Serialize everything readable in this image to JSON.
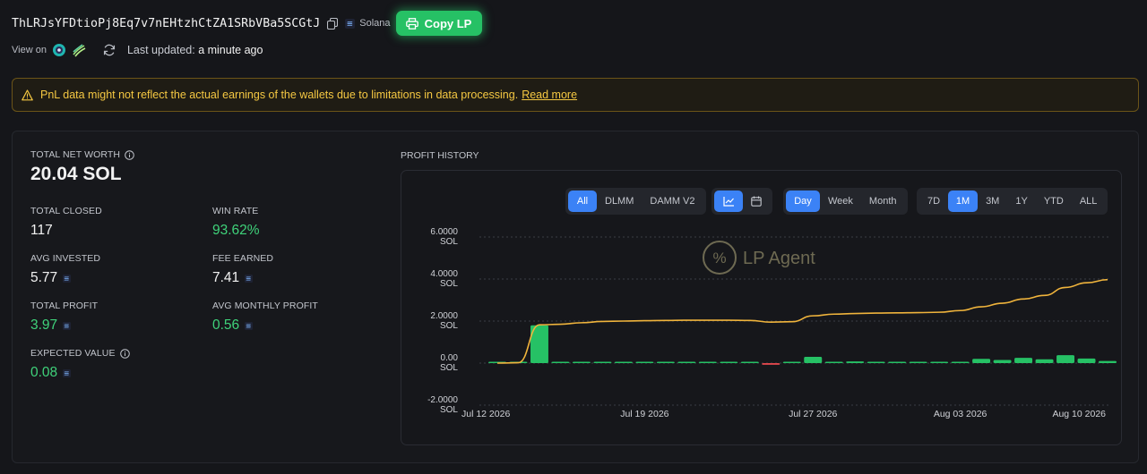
{
  "header": {
    "wallet_address": "ThLRJsYFDtioPj8Eq7v7nEHtzhCtZA1SRbVBa5SCGtJ",
    "network": "Solana",
    "copy_button": "Copy LP"
  },
  "subhead": {
    "view_on": "View on",
    "updated_label": "Last updated:",
    "updated_value": "a minute ago"
  },
  "warning": {
    "text": "PnL data might not reflect the actual earnings of the wallets due to limitations in data processing.",
    "link": "Read more"
  },
  "stats": {
    "net_worth_label": "TOTAL NET WORTH",
    "net_worth_value": "20.04 SOL",
    "total_closed_label": "TOTAL CLOSED",
    "total_closed_value": "117",
    "win_rate_label": "WIN RATE",
    "win_rate_value": "93.62%",
    "avg_invested_label": "AVG INVESTED",
    "avg_invested_value": "5.77",
    "fee_earned_label": "FEE EARNED",
    "fee_earned_value": "7.41",
    "total_profit_label": "TOTAL PROFIT",
    "total_profit_value": "3.97",
    "avg_monthly_label": "AVG MONTHLY PROFIT",
    "avg_monthly_value": "0.56",
    "expected_value_label": "EXPECTED VALUE",
    "expected_value_value": "0.08"
  },
  "profit_history": {
    "title": "PROFIT HISTORY",
    "pool_filters": [
      "All",
      "DLMM",
      "DAMM V2"
    ],
    "pool_active": "All",
    "view_modes": [
      "chart-icon",
      "calendar-icon"
    ],
    "view_active": "chart-icon",
    "granularity": [
      "Day",
      "Week",
      "Month"
    ],
    "granularity_active": "Day",
    "ranges": [
      "7D",
      "1M",
      "3M",
      "1Y",
      "YTD",
      "ALL"
    ],
    "range_active": "1M",
    "watermark": "LP Agent"
  },
  "colors": {
    "accent_green": "#26c165",
    "positive": "#3fd27a",
    "negative": "#e0474c",
    "line": "#f0b43c",
    "active_blue": "#3b82f6",
    "warning": "#f5c842"
  },
  "chart_data": {
    "type": "bar",
    "y_ticks": [
      {
        "value": 6,
        "line1": "6.0000",
        "line2": "SOL"
      },
      {
        "value": 4,
        "line1": "4.0000",
        "line2": "SOL"
      },
      {
        "value": 2,
        "line1": "2.0000",
        "line2": "SOL"
      },
      {
        "value": 0,
        "line1": "0.00",
        "line2": "SOL"
      },
      {
        "value": -2,
        "line1": "-2.0000",
        "line2": "SOL"
      }
    ],
    "ylim": [
      -2,
      6
    ],
    "x_tick_labels": [
      {
        "day": 0,
        "label": "Jul 12 2026"
      },
      {
        "day": 7,
        "label": "Jul 19 2026"
      },
      {
        "day": 15,
        "label": "Jul 27 2026"
      },
      {
        "day": 22,
        "label": "Aug 03 2026"
      },
      {
        "day": 29,
        "label": "Aug 10 2026"
      }
    ],
    "day_count": 30,
    "daily_profit": [
      0.0,
      0.0,
      1.8,
      0.0,
      0.04,
      0.05,
      0.01,
      0.03,
      0.01,
      0.0,
      0.0,
      0.0,
      0.0,
      -0.08,
      0.02,
      0.3,
      0.0,
      0.08,
      0.03,
      0.01,
      0.0,
      0.0,
      0.0,
      0.2,
      0.15,
      0.25,
      0.18,
      0.38,
      0.22,
      0.1
    ],
    "cumulative_profit": [
      0.0,
      0.02,
      1.82,
      1.85,
      1.92,
      1.98,
      2.0,
      2.02,
      2.03,
      2.04,
      2.04,
      2.04,
      2.03,
      1.95,
      1.97,
      2.25,
      2.33,
      2.36,
      2.38,
      2.39,
      2.4,
      2.42,
      2.5,
      2.68,
      2.85,
      3.05,
      3.22,
      3.6,
      3.82,
      3.97
    ]
  }
}
